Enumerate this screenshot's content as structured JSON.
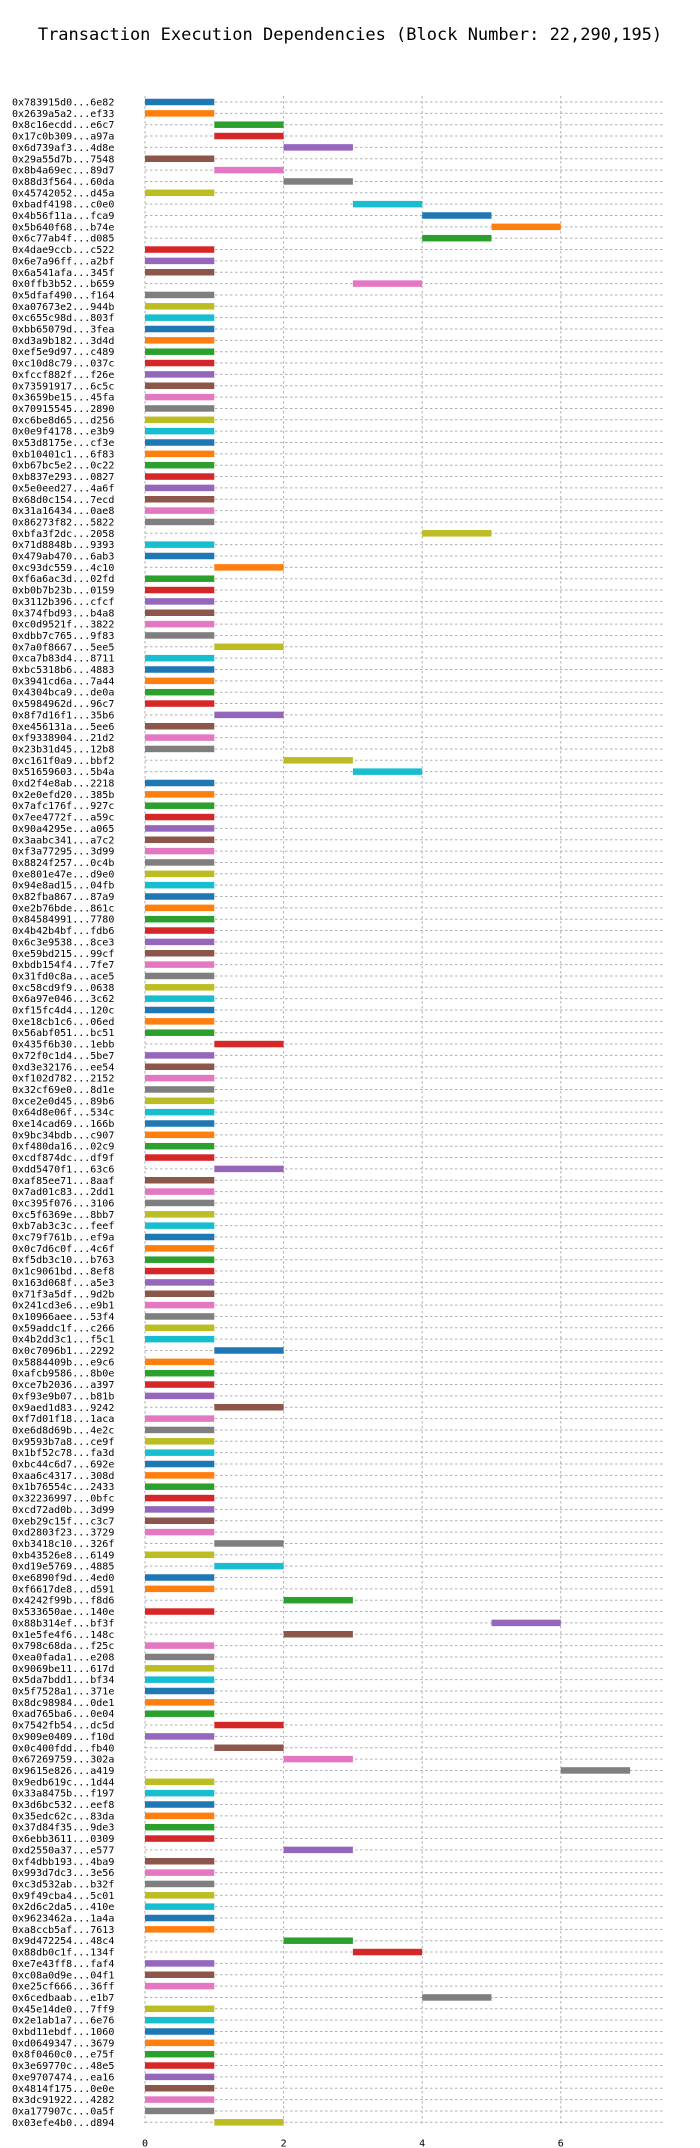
{
  "chart_data": {
    "type": "bar",
    "orientation": "horizontal",
    "title": "Transaction Execution Dependencies (Block Number: 22,290,195)",
    "xlabel": "",
    "ylabel": "",
    "xlim": [
      0,
      7.5
    ],
    "xticks": [
      0,
      2,
      4,
      6
    ],
    "grid": true,
    "colors": [
      "#1f77b4",
      "#ff7f0e",
      "#2ca02c",
      "#d62728",
      "#9467bd",
      "#8c564b",
      "#e377c2",
      "#7f7f7f",
      "#bcbd22",
      "#17becf"
    ],
    "transactions": [
      {
        "label": "0x783915d0...6e82",
        "start": 0,
        "end": 1
      },
      {
        "label": "0x2639a5a2...ef33",
        "start": 0,
        "end": 1
      },
      {
        "label": "0x8c16ecdd...e6c7",
        "start": 1,
        "end": 2
      },
      {
        "label": "0x17c0b309...a97a",
        "start": 1,
        "end": 2
      },
      {
        "label": "0x6d739af3...4d8e",
        "start": 2,
        "end": 3
      },
      {
        "label": "0x29a55d7b...7548",
        "start": 0,
        "end": 1
      },
      {
        "label": "0x8b4a69ec...89d7",
        "start": 1,
        "end": 2
      },
      {
        "label": "0x88d3f564...60da",
        "start": 2,
        "end": 3
      },
      {
        "label": "0x45742052...d45a",
        "start": 0,
        "end": 1
      },
      {
        "label": "0xbadf4198...c0e0",
        "start": 3,
        "end": 4
      },
      {
        "label": "0x4b56f11a...fca9",
        "start": 4,
        "end": 5
      },
      {
        "label": "0x5b640f68...b74e",
        "start": 5,
        "end": 6
      },
      {
        "label": "0x6c77ab4f...d085",
        "start": 4,
        "end": 5
      },
      {
        "label": "0x4dae9ccb...c522",
        "start": 0,
        "end": 1
      },
      {
        "label": "0x6e7a96ff...a2bf",
        "start": 0,
        "end": 1
      },
      {
        "label": "0x6a541afa...345f",
        "start": 0,
        "end": 1
      },
      {
        "label": "0x0ffb3b52...b659",
        "start": 3,
        "end": 4
      },
      {
        "label": "0x5dfaf490...f164",
        "start": 0,
        "end": 1
      },
      {
        "label": "0xa07673e2...944b",
        "start": 0,
        "end": 1
      },
      {
        "label": "0xc655c98d...803f",
        "start": 0,
        "end": 1
      },
      {
        "label": "0xbb65079d...3fea",
        "start": 0,
        "end": 1
      },
      {
        "label": "0xd3a9b182...3d4d",
        "start": 0,
        "end": 1
      },
      {
        "label": "0xef5e9d97...c489",
        "start": 0,
        "end": 1
      },
      {
        "label": "0xc10d8c79...037c",
        "start": 0,
        "end": 1
      },
      {
        "label": "0xfccf882f...f26e",
        "start": 0,
        "end": 1
      },
      {
        "label": "0x73591917...6c5c",
        "start": 0,
        "end": 1
      },
      {
        "label": "0x3659be15...45fa",
        "start": 0,
        "end": 1
      },
      {
        "label": "0x70915545...2890",
        "start": 0,
        "end": 1
      },
      {
        "label": "0xc6be8d65...d256",
        "start": 0,
        "end": 1
      },
      {
        "label": "0x0e9f4178...e3b9",
        "start": 0,
        "end": 1
      },
      {
        "label": "0x53d8175e...cf3e",
        "start": 0,
        "end": 1
      },
      {
        "label": "0xb10401c1...6f83",
        "start": 0,
        "end": 1
      },
      {
        "label": "0xb67bc5e2...0c22",
        "start": 0,
        "end": 1
      },
      {
        "label": "0xb837e293...0827",
        "start": 0,
        "end": 1
      },
      {
        "label": "0x5e0eed27...4a6f",
        "start": 0,
        "end": 1
      },
      {
        "label": "0x68d0c154...7ecd",
        "start": 0,
        "end": 1
      },
      {
        "label": "0x31a16434...0ae8",
        "start": 0,
        "end": 1
      },
      {
        "label": "0x86273f82...5822",
        "start": 0,
        "end": 1
      },
      {
        "label": "0xbfa3f2dc...2058",
        "start": 4,
        "end": 5
      },
      {
        "label": "0x71d8848b...9393",
        "start": 0,
        "end": 1
      },
      {
        "label": "0x479ab470...6ab3",
        "start": 0,
        "end": 1
      },
      {
        "label": "0xc93dc559...4c10",
        "start": 1,
        "end": 2
      },
      {
        "label": "0xf6a6ac3d...02fd",
        "start": 0,
        "end": 1
      },
      {
        "label": "0xb0b7b23b...0159",
        "start": 0,
        "end": 1
      },
      {
        "label": "0x3112b396...cfcf",
        "start": 0,
        "end": 1
      },
      {
        "label": "0x374fbd93...b4a8",
        "start": 0,
        "end": 1
      },
      {
        "label": "0xc0d9521f...3822",
        "start": 0,
        "end": 1
      },
      {
        "label": "0xdbb7c765...9f83",
        "start": 0,
        "end": 1
      },
      {
        "label": "0x7a0f8667...5ee5",
        "start": 1,
        "end": 2
      },
      {
        "label": "0xca7b83d4...8711",
        "start": 0,
        "end": 1
      },
      {
        "label": "0xbc5318b6...4883",
        "start": 0,
        "end": 1
      },
      {
        "label": "0x3941cd6a...7a44",
        "start": 0,
        "end": 1
      },
      {
        "label": "0x4304bca9...de0a",
        "start": 0,
        "end": 1
      },
      {
        "label": "0x5984962d...96c7",
        "start": 0,
        "end": 1
      },
      {
        "label": "0x8f7d16f1...35b6",
        "start": 1,
        "end": 2
      },
      {
        "label": "0xe456131a...5ee6",
        "start": 0,
        "end": 1
      },
      {
        "label": "0xf9338904...21d2",
        "start": 0,
        "end": 1
      },
      {
        "label": "0x23b31d45...12b8",
        "start": 0,
        "end": 1
      },
      {
        "label": "0xc161f0a9...bbf2",
        "start": 2,
        "end": 3
      },
      {
        "label": "0x51659603...5b4a",
        "start": 3,
        "end": 4
      },
      {
        "label": "0xd2f4e8ab...2218",
        "start": 0,
        "end": 1
      },
      {
        "label": "0x2e0efd20...385b",
        "start": 0,
        "end": 1
      },
      {
        "label": "0x7afc176f...927c",
        "start": 0,
        "end": 1
      },
      {
        "label": "0x7ee4772f...a59c",
        "start": 0,
        "end": 1
      },
      {
        "label": "0x90a4295e...a065",
        "start": 0,
        "end": 1
      },
      {
        "label": "0x3aabc341...a7c2",
        "start": 0,
        "end": 1
      },
      {
        "label": "0xf3a77295...3d99",
        "start": 0,
        "end": 1
      },
      {
        "label": "0x8824f257...0c4b",
        "start": 0,
        "end": 1
      },
      {
        "label": "0xe801e47e...d9e0",
        "start": 0,
        "end": 1
      },
      {
        "label": "0x94e8ad15...04fb",
        "start": 0,
        "end": 1
      },
      {
        "label": "0x82fba867...87a9",
        "start": 0,
        "end": 1
      },
      {
        "label": "0xe2b76bde...861c",
        "start": 0,
        "end": 1
      },
      {
        "label": "0x84584991...7780",
        "start": 0,
        "end": 1
      },
      {
        "label": "0x4b42b4bf...fdb6",
        "start": 0,
        "end": 1
      },
      {
        "label": "0x6c3e9538...8ce3",
        "start": 0,
        "end": 1
      },
      {
        "label": "0xe59bd215...99cf",
        "start": 0,
        "end": 1
      },
      {
        "label": "0xbdb154f4...7fe7",
        "start": 0,
        "end": 1
      },
      {
        "label": "0x31fd0c8a...ace5",
        "start": 0,
        "end": 1
      },
      {
        "label": "0xc58cd9f9...0638",
        "start": 0,
        "end": 1
      },
      {
        "label": "0x6a97e046...3c62",
        "start": 0,
        "end": 1
      },
      {
        "label": "0xf15fc4d4...120c",
        "start": 0,
        "end": 1
      },
      {
        "label": "0xe18cb1c6...06ed",
        "start": 0,
        "end": 1
      },
      {
        "label": "0x56abf051...bc51",
        "start": 0,
        "end": 1
      },
      {
        "label": "0x435f6b30...1ebb",
        "start": 1,
        "end": 2
      },
      {
        "label": "0x72f0c1d4...5be7",
        "start": 0,
        "end": 1
      },
      {
        "label": "0xd3e32176...ee54",
        "start": 0,
        "end": 1
      },
      {
        "label": "0xf102d782...2152",
        "start": 0,
        "end": 1
      },
      {
        "label": "0x32cf69e0...8d1e",
        "start": 0,
        "end": 1
      },
      {
        "label": "0xce2e0d45...89b6",
        "start": 0,
        "end": 1
      },
      {
        "label": "0x64d8e06f...534c",
        "start": 0,
        "end": 1
      },
      {
        "label": "0xe14cad69...166b",
        "start": 0,
        "end": 1
      },
      {
        "label": "0x9bc34bdb...c907",
        "start": 0,
        "end": 1
      },
      {
        "label": "0xf480da16...02c9",
        "start": 0,
        "end": 1
      },
      {
        "label": "0xcdf874dc...df9f",
        "start": 0,
        "end": 1
      },
      {
        "label": "0xdd5470f1...63c6",
        "start": 1,
        "end": 2
      },
      {
        "label": "0xaf85ee71...8aaf",
        "start": 0,
        "end": 1
      },
      {
        "label": "0x7ad01c83...2dd1",
        "start": 0,
        "end": 1
      },
      {
        "label": "0xc395f076...3106",
        "start": 0,
        "end": 1
      },
      {
        "label": "0xc5f6369e...8bb7",
        "start": 0,
        "end": 1
      },
      {
        "label": "0xb7ab3c3c...feef",
        "start": 0,
        "end": 1
      },
      {
        "label": "0xc79f761b...ef9a",
        "start": 0,
        "end": 1
      },
      {
        "label": "0x0c7d6c0f...4c6f",
        "start": 0,
        "end": 1
      },
      {
        "label": "0xf5db3c10...b763",
        "start": 0,
        "end": 1
      },
      {
        "label": "0x1c9061bd...8ef8",
        "start": 0,
        "end": 1
      },
      {
        "label": "0x163d068f...a5e3",
        "start": 0,
        "end": 1
      },
      {
        "label": "0x71f3a5df...9d2b",
        "start": 0,
        "end": 1
      },
      {
        "label": "0x241cd3e6...e9b1",
        "start": 0,
        "end": 1
      },
      {
        "label": "0x10966aee...53f4",
        "start": 0,
        "end": 1
      },
      {
        "label": "0x59addc1f...c266",
        "start": 0,
        "end": 1
      },
      {
        "label": "0x4b2dd3c1...f5c1",
        "start": 0,
        "end": 1
      },
      {
        "label": "0x0c7096b1...2292",
        "start": 1,
        "end": 2
      },
      {
        "label": "0x5884409b...e9c6",
        "start": 0,
        "end": 1
      },
      {
        "label": "0xafcb9586...8b0e",
        "start": 0,
        "end": 1
      },
      {
        "label": "0xce7b2036...a397",
        "start": 0,
        "end": 1
      },
      {
        "label": "0xf93e9b07...b81b",
        "start": 0,
        "end": 1
      },
      {
        "label": "0x9aed1d83...9242",
        "start": 1,
        "end": 2
      },
      {
        "label": "0xf7d01f18...1aca",
        "start": 0,
        "end": 1
      },
      {
        "label": "0xe6d8d69b...4e2c",
        "start": 0,
        "end": 1
      },
      {
        "label": "0x9593b7a8...ce9f",
        "start": 0,
        "end": 1
      },
      {
        "label": "0x1bf52c78...fa3d",
        "start": 0,
        "end": 1
      },
      {
        "label": "0xbc44c6d7...692e",
        "start": 0,
        "end": 1
      },
      {
        "label": "0xaa6c4317...308d",
        "start": 0,
        "end": 1
      },
      {
        "label": "0x1b76554c...2433",
        "start": 0,
        "end": 1
      },
      {
        "label": "0x32236997...0bfc",
        "start": 0,
        "end": 1
      },
      {
        "label": "0xcd72ad0b...3d99",
        "start": 0,
        "end": 1
      },
      {
        "label": "0xeb29c15f...c3c7",
        "start": 0,
        "end": 1
      },
      {
        "label": "0xd2803f23...3729",
        "start": 0,
        "end": 1
      },
      {
        "label": "0xb3418c10...326f",
        "start": 1,
        "end": 2
      },
      {
        "label": "0xb43526e8...6149",
        "start": 0,
        "end": 1
      },
      {
        "label": "0xd19e5769...4885",
        "start": 1,
        "end": 2
      },
      {
        "label": "0xe6890f9d...4ed0",
        "start": 0,
        "end": 1
      },
      {
        "label": "0xf6617de8...d591",
        "start": 0,
        "end": 1
      },
      {
        "label": "0x4242f99b...f8d6",
        "start": 2,
        "end": 3
      },
      {
        "label": "0x533650ae...140e",
        "start": 0,
        "end": 1
      },
      {
        "label": "0x88b314ef...bf3f",
        "start": 5,
        "end": 6
      },
      {
        "label": "0x1e5fe4f6...148c",
        "start": 2,
        "end": 3
      },
      {
        "label": "0x798c68da...f25c",
        "start": 0,
        "end": 1
      },
      {
        "label": "0xea0fada1...e208",
        "start": 0,
        "end": 1
      },
      {
        "label": "0x9069be11...617d",
        "start": 0,
        "end": 1
      },
      {
        "label": "0x5da7bdd1...bf34",
        "start": 0,
        "end": 1
      },
      {
        "label": "0x5f7528a1...371e",
        "start": 0,
        "end": 1
      },
      {
        "label": "0x8dc98984...0de1",
        "start": 0,
        "end": 1
      },
      {
        "label": "0xad765ba6...0e04",
        "start": 0,
        "end": 1
      },
      {
        "label": "0x7542fb54...dc5d",
        "start": 1,
        "end": 2
      },
      {
        "label": "0x909e0409...f10d",
        "start": 0,
        "end": 1
      },
      {
        "label": "0x0c400fdd...fb40",
        "start": 1,
        "end": 2
      },
      {
        "label": "0x67269759...302a",
        "start": 2,
        "end": 3
      },
      {
        "label": "0x9615e826...a419",
        "start": 6,
        "end": 7
      },
      {
        "label": "0x9edb619c...1d44",
        "start": 0,
        "end": 1
      },
      {
        "label": "0x33a8475b...f197",
        "start": 0,
        "end": 1
      },
      {
        "label": "0x3d6bc532...eef8",
        "start": 0,
        "end": 1
      },
      {
        "label": "0x35edc62c...83da",
        "start": 0,
        "end": 1
      },
      {
        "label": "0x37d84f35...9de3",
        "start": 0,
        "end": 1
      },
      {
        "label": "0x6ebb3611...0309",
        "start": 0,
        "end": 1
      },
      {
        "label": "0xd2550a37...e577",
        "start": 2,
        "end": 3
      },
      {
        "label": "0xf4dbb193...4ba9",
        "start": 0,
        "end": 1
      },
      {
        "label": "0x993d7dc3...3e56",
        "start": 0,
        "end": 1
      },
      {
        "label": "0xc3d532ab...b32f",
        "start": 0,
        "end": 1
      },
      {
        "label": "0x9f49cba4...5c01",
        "start": 0,
        "end": 1
      },
      {
        "label": "0x2d6c2da5...410e",
        "start": 0,
        "end": 1
      },
      {
        "label": "0x9623462a...1a4a",
        "start": 0,
        "end": 1
      },
      {
        "label": "0xa8ccb5af...7613",
        "start": 0,
        "end": 1
      },
      {
        "label": "0x9d472254...48c4",
        "start": 2,
        "end": 3
      },
      {
        "label": "0x88db0c1f...134f",
        "start": 3,
        "end": 4
      },
      {
        "label": "0xe7e43ff8...faf4",
        "start": 0,
        "end": 1
      },
      {
        "label": "0xc08a0d9e...04f1",
        "start": 0,
        "end": 1
      },
      {
        "label": "0xe25cf666...36ff",
        "start": 0,
        "end": 1
      },
      {
        "label": "0x6cedbaab...e1b7",
        "start": 4,
        "end": 5
      },
      {
        "label": "0x45e14de0...7ff9",
        "start": 0,
        "end": 1
      },
      {
        "label": "0x2e1ab1a7...6e76",
        "start": 0,
        "end": 1
      },
      {
        "label": "0xbd11ebdf...1060",
        "start": 0,
        "end": 1
      },
      {
        "label": "0xd0649347...3679",
        "start": 0,
        "end": 1
      },
      {
        "label": "0x8f0460c0...e75f",
        "start": 0,
        "end": 1
      },
      {
        "label": "0x3e69770c...48e5",
        "start": 0,
        "end": 1
      },
      {
        "label": "0xe9707474...ea16",
        "start": 0,
        "end": 1
      },
      {
        "label": "0x4814f175...0e0e",
        "start": 0,
        "end": 1
      },
      {
        "label": "0x3dc91922...4282",
        "start": 0,
        "end": 1
      },
      {
        "label": "0xa177907c...0a5f",
        "start": 0,
        "end": 1
      },
      {
        "label": "0x03efe4b0...d894",
        "start": 1,
        "end": 2
      }
    ]
  }
}
